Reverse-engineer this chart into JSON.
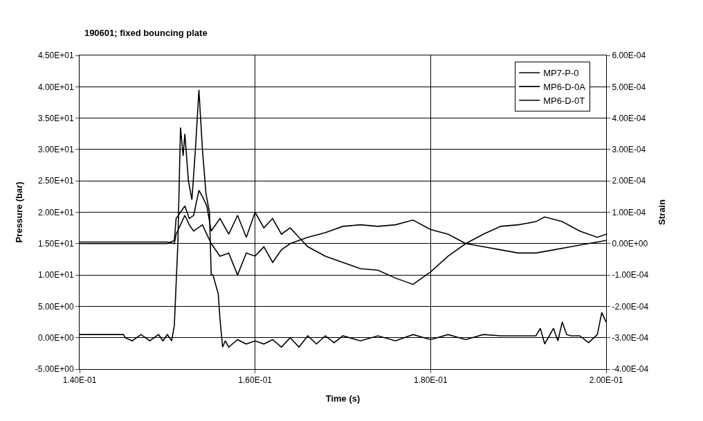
{
  "chart_data": {
    "type": "line",
    "title": "190601; fixed bouncing plate",
    "xlabel": "Time (s)",
    "ylabel": "Pressure (bar)",
    "y2label": "Strain",
    "xlim": [
      0.14,
      0.2
    ],
    "xticks": [
      {
        "value": 0.14,
        "label": "1.40E-01"
      },
      {
        "value": 0.16,
        "label": "1.60E-01"
      },
      {
        "value": 0.18,
        "label": "1.80E-01"
      },
      {
        "value": 0.2,
        "label": "2.00E-01"
      }
    ],
    "ylim": [
      -5,
      45
    ],
    "yticks": [
      {
        "value": -5,
        "label": "-5.00E+00"
      },
      {
        "value": 0,
        "label": "0.00E+00"
      },
      {
        "value": 5,
        "label": "5.00E+00"
      },
      {
        "value": 10,
        "label": "1.00E+01"
      },
      {
        "value": 15,
        "label": "1.50E+01"
      },
      {
        "value": 20,
        "label": "2.00E+01"
      },
      {
        "value": 25,
        "label": "2.50E+01"
      },
      {
        "value": 30,
        "label": "3.00E+01"
      },
      {
        "value": 35,
        "label": "3.50E+01"
      },
      {
        "value": 40,
        "label": "4.00E+01"
      },
      {
        "value": 45,
        "label": "4.50E+01"
      }
    ],
    "y2lim": [
      -0.0004,
      0.0006
    ],
    "y2ticks": [
      {
        "value": -0.0004,
        "label": "-4.00E-04"
      },
      {
        "value": -0.0003,
        "label": "-3.00E-04"
      },
      {
        "value": -0.0002,
        "label": "-2.00E-04"
      },
      {
        "value": -0.0001,
        "label": "-1.00E-04"
      },
      {
        "value": 0,
        "label": "0.00E+00"
      },
      {
        "value": 0.0001,
        "label": "1.00E-04"
      },
      {
        "value": 0.0002,
        "label": "2.00E-04"
      },
      {
        "value": 0.0003,
        "label": "3.00E-04"
      },
      {
        "value": 0.0004,
        "label": "4.00E-04"
      },
      {
        "value": 0.0005,
        "label": "5.00E-04"
      },
      {
        "value": 0.0006,
        "label": "6.00E-04"
      }
    ],
    "grid": true,
    "legend": "top right",
    "marker": "none",
    "line_style": "solid",
    "series": [
      {
        "name": "MP7-P-0",
        "color": "#000000",
        "x": [
          0.14,
          0.145,
          0.1452,
          0.146,
          0.147,
          0.148,
          0.149,
          0.1495,
          0.15,
          0.1505,
          0.1508,
          0.1512,
          0.1515,
          0.1518,
          0.152,
          0.1524,
          0.1528,
          0.1532,
          0.1536,
          0.154,
          0.1544,
          0.1548,
          0.155,
          0.1552,
          0.1555,
          0.1558,
          0.156,
          0.1563,
          0.1566,
          0.157,
          0.158,
          0.159,
          0.16,
          0.161,
          0.162,
          0.163,
          0.164,
          0.165,
          0.166,
          0.167,
          0.168,
          0.169,
          0.17,
          0.172,
          0.174,
          0.176,
          0.178,
          0.18,
          0.182,
          0.184,
          0.186,
          0.188,
          0.19,
          0.192,
          0.1925,
          0.193,
          0.194,
          0.1945,
          0.195,
          0.1955,
          0.196,
          0.197,
          0.198,
          0.199,
          0.1995,
          0.2
        ],
        "values": [
          0.5,
          0.5,
          0,
          -0.5,
          0.5,
          -0.5,
          0.5,
          -0.5,
          0.5,
          -0.5,
          2,
          15,
          33.5,
          29,
          32.5,
          25,
          22,
          30,
          39.5,
          30,
          23,
          20,
          10,
          10,
          8.5,
          7,
          3,
          -1.5,
          -0.5,
          -1.5,
          -0.3,
          -1,
          -0.5,
          -1,
          -0.3,
          -1.5,
          0,
          -1.5,
          0.3,
          -1,
          0.3,
          -0.8,
          0.3,
          -0.5,
          0.3,
          -0.5,
          0.5,
          -0.3,
          0.5,
          -0.3,
          0.5,
          0.3,
          0.3,
          0.3,
          1.5,
          -1,
          1.5,
          -0.5,
          2.5,
          0.5,
          0.3,
          0.3,
          -0.8,
          0.5,
          4,
          2.5
        ]
      },
      {
        "name": "MP6-D-0A",
        "color": "#000000",
        "axis": "y2",
        "x": [
          0.14,
          0.15,
          0.1508,
          0.151,
          0.152,
          0.1525,
          0.153,
          0.1536,
          0.154,
          0.1545,
          0.155,
          0.156,
          0.157,
          0.158,
          0.159,
          0.16,
          0.161,
          0.162,
          0.163,
          0.164,
          0.165,
          0.166,
          0.168,
          0.17,
          0.172,
          0.174,
          0.176,
          0.178,
          0.18,
          0.182,
          0.184,
          0.186,
          0.188,
          0.19,
          0.192,
          0.193,
          0.195,
          0.197,
          0.199,
          0.2
        ],
        "values": [
          0,
          0,
          1e-05,
          8e-05,
          0.00012,
          8e-05,
          9e-05,
          0.00017,
          0.00015,
          0.00012,
          4e-05,
          8e-05,
          3e-05,
          9e-05,
          2e-05,
          0.0001,
          5e-05,
          8e-05,
          3e-05,
          5e-05,
          2e-05,
          -1e-05,
          -4e-05,
          -6e-05,
          -8e-05,
          -8.5e-05,
          -0.00011,
          -0.00013,
          -9e-05,
          -4e-05,
          0,
          3e-05,
          5.5e-05,
          6e-05,
          7e-05,
          8.5e-05,
          7e-05,
          4e-05,
          2e-05,
          3e-05
        ]
      },
      {
        "name": "MP6-D-0T",
        "color": "#000000",
        "axis": "y2",
        "x": [
          0.14,
          0.15,
          0.1508,
          0.151,
          0.152,
          0.1525,
          0.153,
          0.154,
          0.155,
          0.156,
          0.157,
          0.158,
          0.159,
          0.16,
          0.161,
          0.162,
          0.163,
          0.164,
          0.166,
          0.168,
          0.17,
          0.172,
          0.174,
          0.176,
          0.178,
          0.18,
          0.182,
          0.184,
          0.186,
          0.188,
          0.19,
          0.192,
          0.194,
          0.196,
          0.198,
          0.2
        ],
        "values": [
          5e-06,
          5e-06,
          0,
          3e-05,
          9e-05,
          6e-05,
          4e-05,
          6e-05,
          0,
          -4e-05,
          -3e-05,
          -0.0001,
          -3e-05,
          -4e-05,
          -1e-05,
          -6e-05,
          -2e-05,
          0,
          2e-05,
          3.5e-05,
          5.5e-05,
          6e-05,
          5.5e-05,
          6e-05,
          7.5e-05,
          4.5e-05,
          3e-05,
          0,
          -1e-05,
          -2e-05,
          -3e-05,
          -3e-05,
          -2e-05,
          -1e-05,
          0,
          1e-05
        ]
      }
    ]
  }
}
